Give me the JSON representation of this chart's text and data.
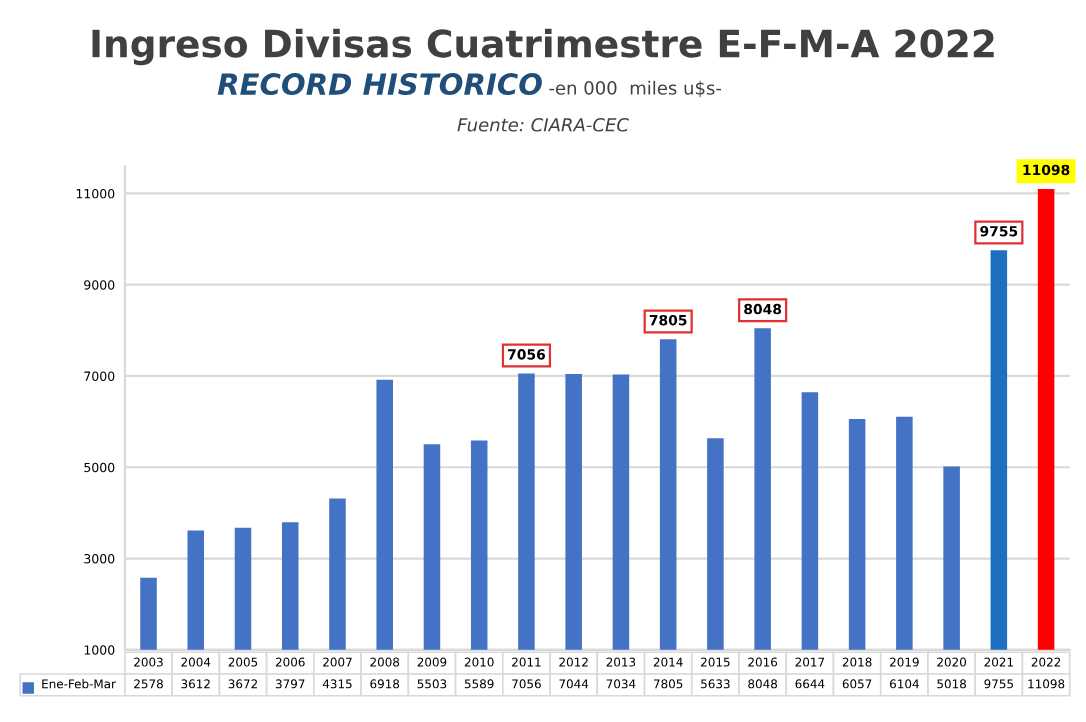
{
  "chart_data": {
    "type": "bar",
    "title": "Ingreso Divisas Cuatrimestre E-F-M-A 2022",
    "subtitle": "RECORD HISTORICO",
    "annotations": [
      "-en 000  miles u$s-",
      "Fuente: CIARA-CEC",
      {
        "text": "7056",
        "x": "2011",
        "y": 7056
      },
      {
        "text": "7805",
        "x": "2014",
        "y": 7805
      },
      {
        "text": "8048",
        "x": "2016",
        "y": 8048
      },
      {
        "text": "9755",
        "x": "2021",
        "y": 9755
      },
      {
        "text": "11098",
        "x": "2022",
        "y": 11098
      }
    ],
    "categories": [
      "2003",
      "2004",
      "2005",
      "2006",
      "2007",
      "2008",
      "2009",
      "2010",
      "2011",
      "2012",
      "2013",
      "2014",
      "2015",
      "2016",
      "2017",
      "2018",
      "2019",
      "2020",
      "2021",
      "2022"
    ],
    "series": [
      {
        "name": "Ene-Feb-Mar",
        "color": "#4472c4",
        "colors": [
          "#4472c4",
          "#4472c4",
          "#4472c4",
          "#4472c4",
          "#4472c4",
          "#4472c4",
          "#4472c4",
          "#4472c4",
          "#4472c4",
          "#4472c4",
          "#4472c4",
          "#4472c4",
          "#4472c4",
          "#4472c4",
          "#4472c4",
          "#4472c4",
          "#4472c4",
          "#4472c4",
          "#1f6fc0",
          "#ff0000"
        ],
        "values": [
          2578,
          3612,
          3672,
          3797,
          4315,
          6918,
          5503,
          5589,
          7056,
          7044,
          7034,
          7805,
          5633,
          8048,
          6644,
          6057,
          6104,
          5018,
          9755,
          11098
        ]
      }
    ],
    "ylim": [
      1000,
      11600
    ],
    "yticks": [
      1000,
      3000,
      5000,
      7000,
      9000,
      11000
    ],
    "grid": "y",
    "tick_labels": "y",
    "data_labels": true
  }
}
